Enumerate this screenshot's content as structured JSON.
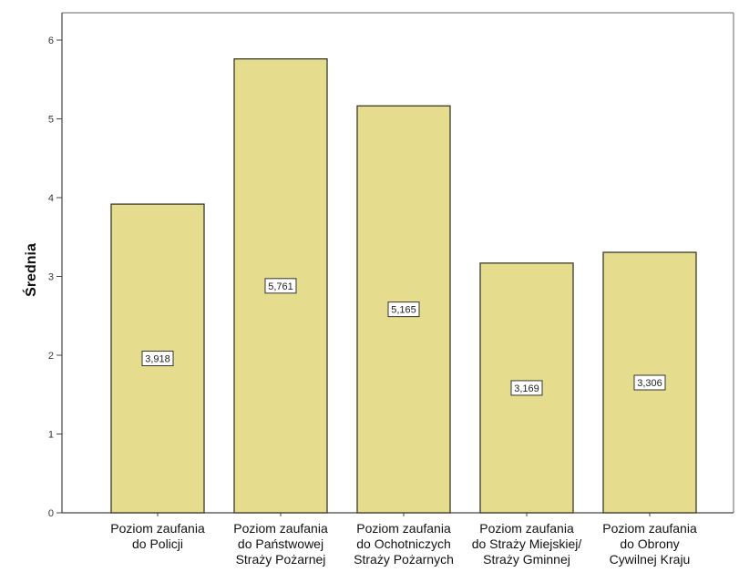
{
  "chart_data": {
    "type": "bar",
    "title": "",
    "xlabel": "",
    "ylabel": "Średnia",
    "ylim": [
      0,
      6
    ],
    "yticks": [
      "0",
      "1",
      "2",
      "3",
      "4",
      "5",
      "6"
    ],
    "categories": [
      [
        "Poziom zaufania",
        "do Policji"
      ],
      [
        "Poziom zaufania",
        "do Państwowej",
        "Straży Pożarnej"
      ],
      [
        "Poziom zaufania",
        "do Ochotniczych",
        "Straży Pożarnych"
      ],
      [
        "Poziom zaufania",
        "do Straży Miejskiej/",
        "Straży Gminnej"
      ],
      [
        "Poziom zaufania",
        "do Obrony",
        "Cywilnej Kraju"
      ]
    ],
    "values": [
      3.918,
      5.761,
      5.165,
      3.169,
      3.306
    ],
    "data_labels": [
      "3,918",
      "5,761",
      "5,165",
      "3,169",
      "3,306"
    ],
    "grid": false,
    "bar_color": "#e6dc8e",
    "bar_stroke": "#3a3a2a",
    "plot_background": "#ffffff"
  }
}
